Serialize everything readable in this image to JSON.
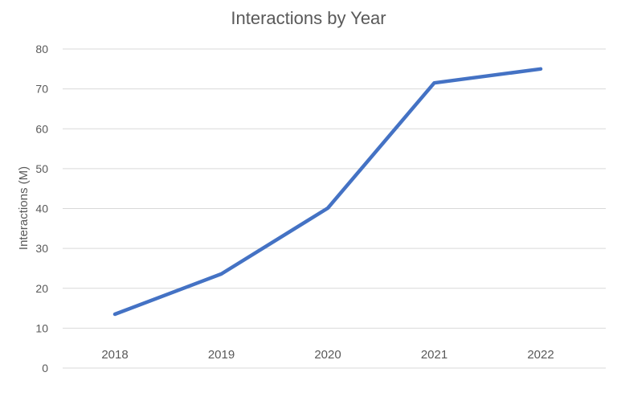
{
  "chart_data": {
    "type": "line",
    "title": "Interactions by Year",
    "xlabel": "",
    "ylabel": "Interactions (M)",
    "categories": [
      "2018",
      "2019",
      "2020",
      "2021",
      "2022"
    ],
    "ylim": [
      0,
      80
    ],
    "yticks": [
      0,
      10,
      20,
      30,
      40,
      50,
      60,
      70,
      80
    ],
    "grid": true,
    "legend": "none",
    "series": [
      {
        "values": [
          13.5,
          23.6,
          40.1,
          71.5,
          75.0
        ],
        "color": "#4472C4"
      }
    ],
    "colors": {
      "title": "#595959",
      "axis_text": "#595959",
      "grid": "#d9d9d9"
    }
  }
}
